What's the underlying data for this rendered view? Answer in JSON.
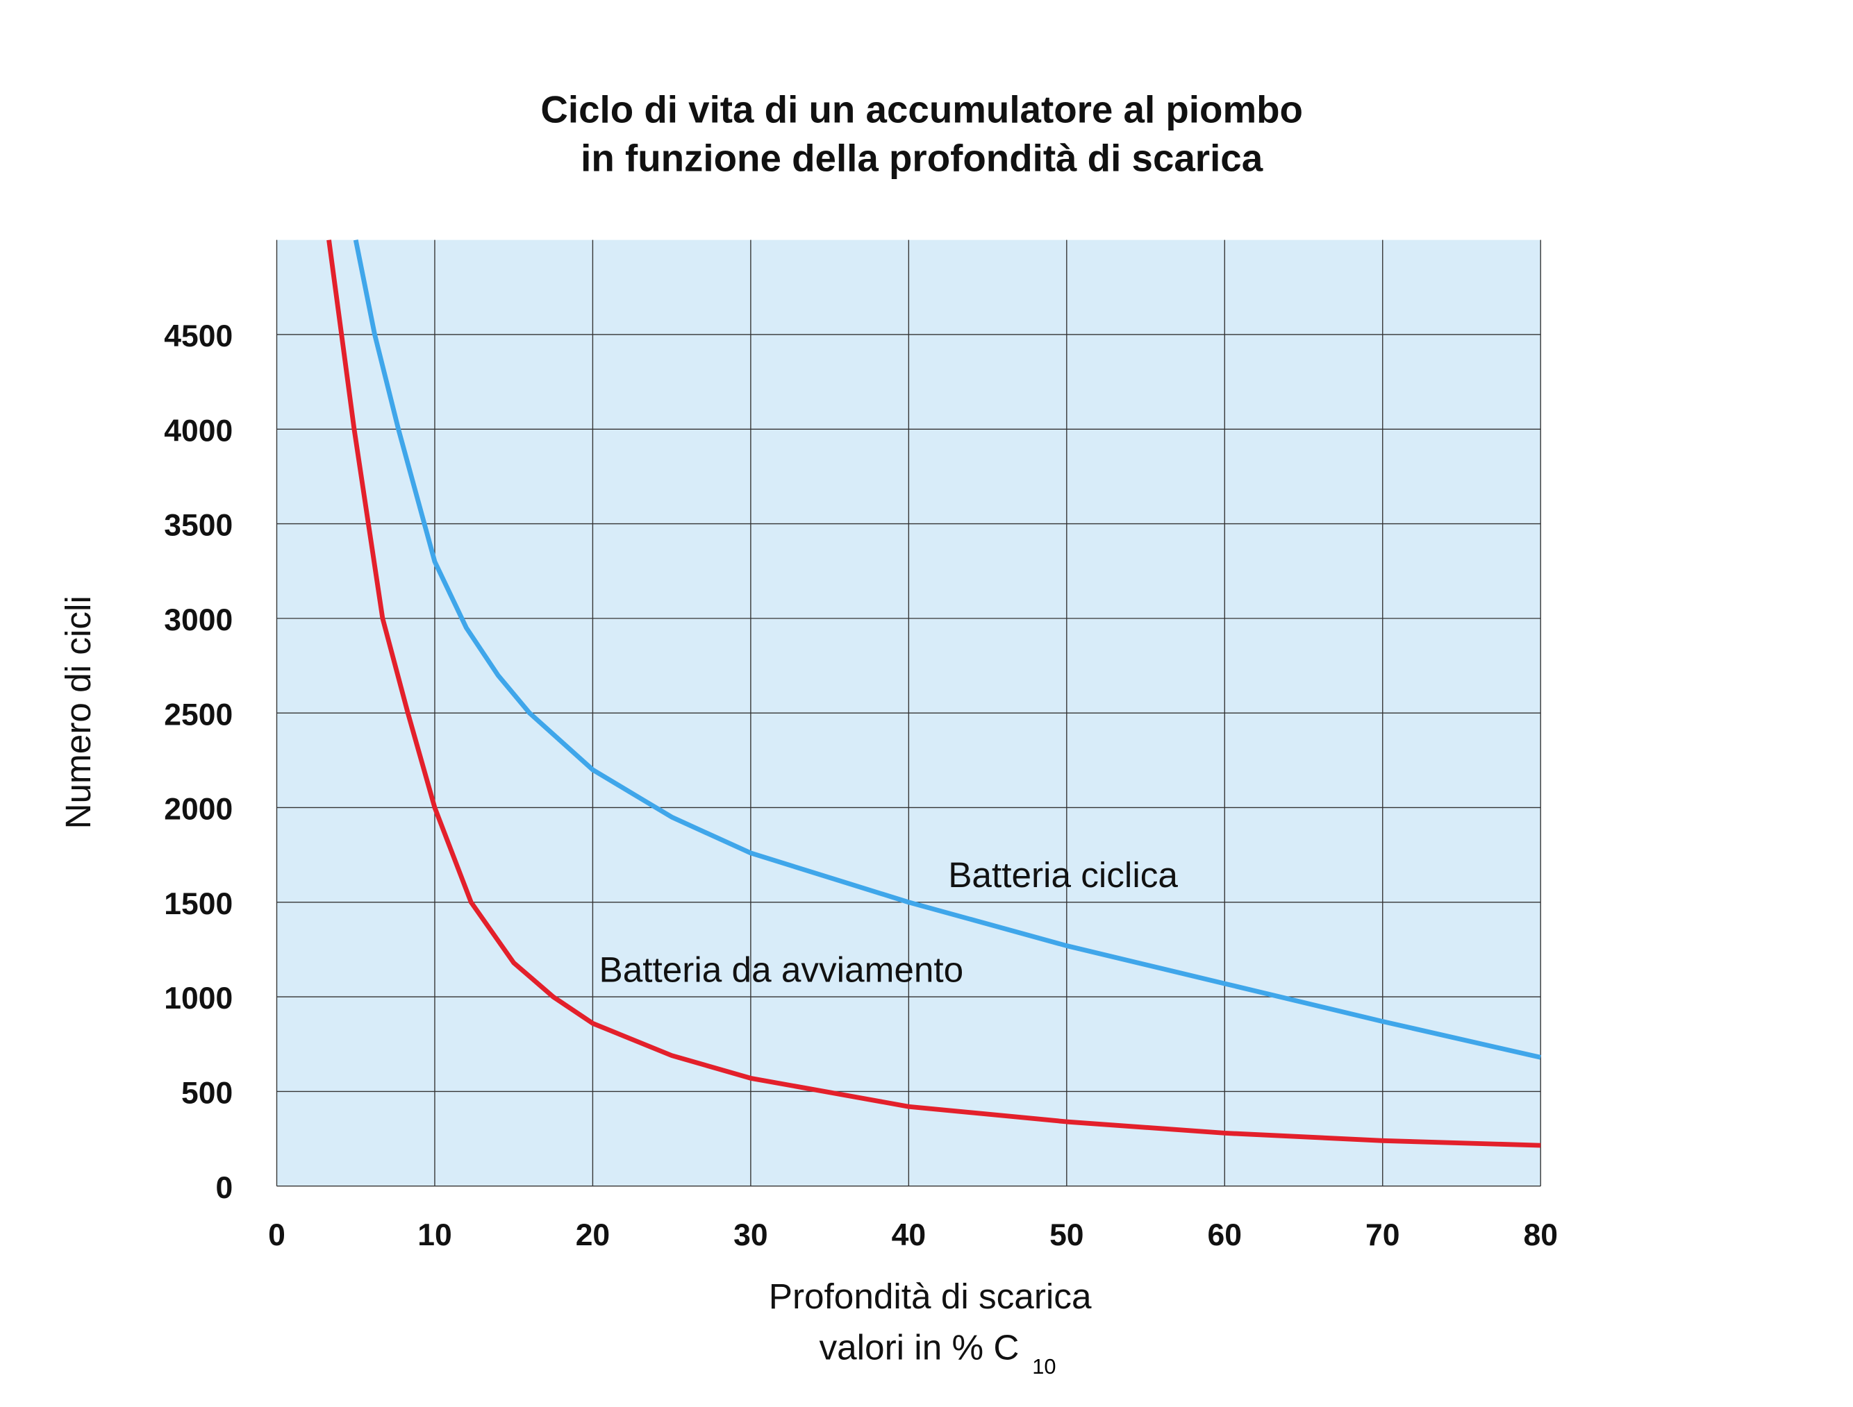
{
  "chart_data": {
    "type": "line",
    "title": [
      "Ciclo di vita di un accumulatore al piombo",
      "in funzione della profondità di scarica"
    ],
    "ylabel": "Numero di cicli",
    "xlabel": "Profondità di scarica",
    "xlabel_line2": "valori in % C",
    "xlabel_subscript": "10",
    "xlim": [
      0,
      80
    ],
    "xticks": [
      0,
      10,
      20,
      30,
      40,
      50,
      60,
      70,
      80
    ],
    "ylim": [
      0,
      5000
    ],
    "yticks": [
      0,
      500,
      1000,
      1500,
      2000,
      2500,
      3000,
      3500,
      4000,
      4500
    ],
    "grid": true,
    "background": "#d8ecf9",
    "series": [
      {
        "name": "Batteria ciclica",
        "color": "#3fa6ea",
        "x": [
          5.0,
          6.2,
          7.7,
          10,
          12,
          14,
          16,
          20,
          25,
          30,
          40,
          50,
          60,
          70,
          80
        ],
        "values": [
          5000,
          4500,
          4000,
          3300,
          2950,
          2700,
          2500,
          2200,
          1950,
          1760,
          1500,
          1270,
          1070,
          870,
          680
        ],
        "label_pos": [
          42.5,
          1580
        ]
      },
      {
        "name": "Batteria da avviamento",
        "color": "#e3202b",
        "x": [
          3.3,
          4.9,
          6.7,
          8.3,
          10,
          12.3,
          15,
          17.5,
          20,
          25,
          30,
          40,
          50,
          60,
          70,
          80
        ],
        "values": [
          5000,
          4000,
          3000,
          2500,
          2000,
          1500,
          1180,
          1000,
          860,
          690,
          570,
          420,
          340,
          280,
          240,
          215
        ],
        "label_pos": [
          20.4,
          1080
        ]
      }
    ]
  }
}
